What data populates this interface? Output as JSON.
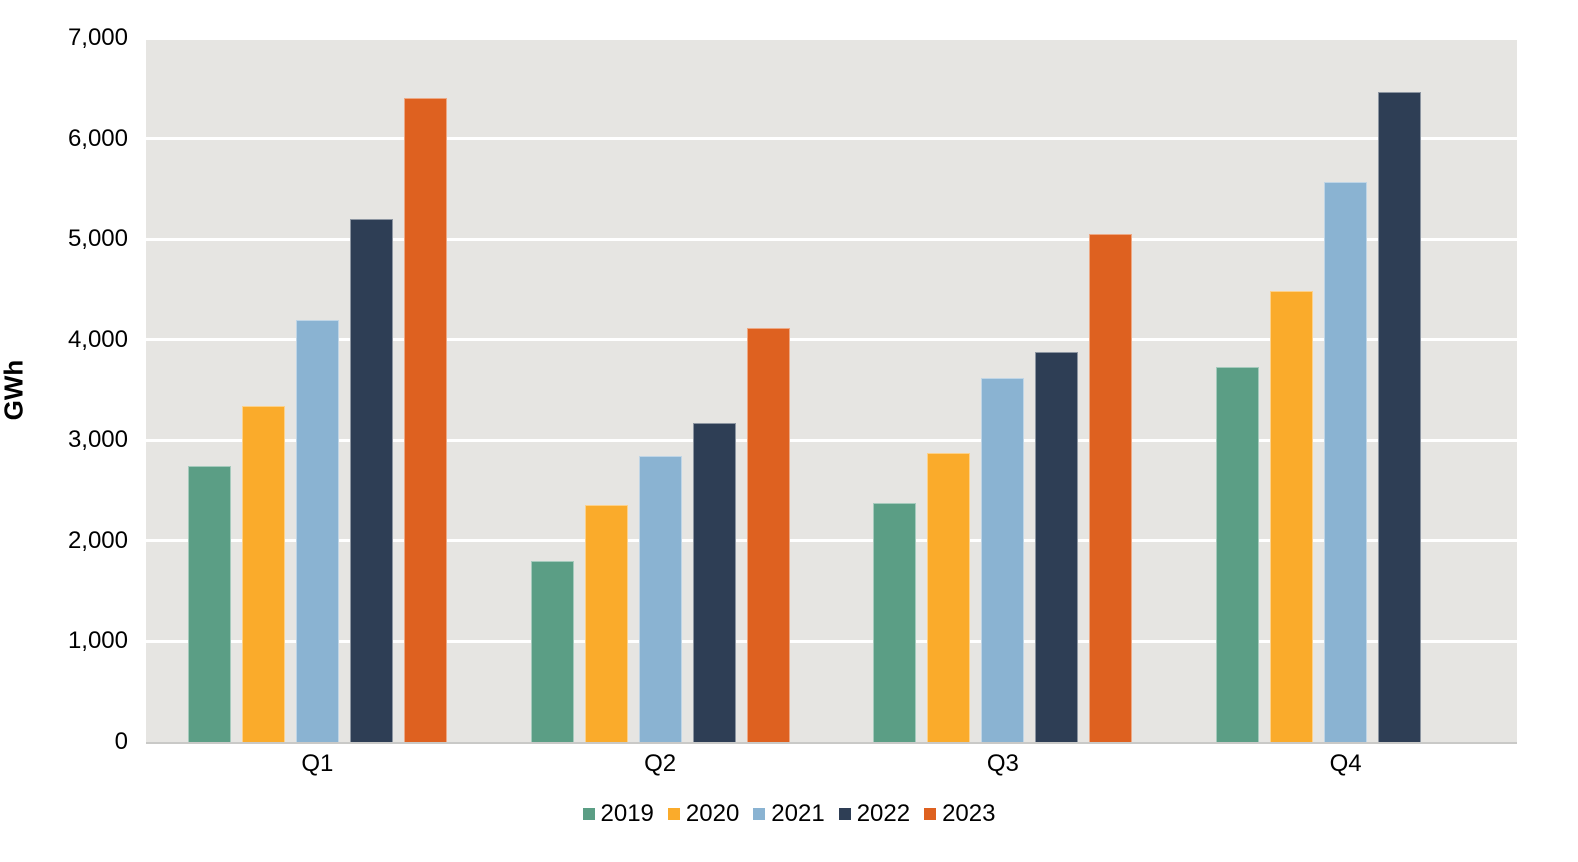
{
  "chart_data": {
    "type": "bar",
    "title": "",
    "xlabel": "",
    "ylabel": "GWh",
    "categories": [
      "Q1",
      "Q2",
      "Q3",
      "Q4"
    ],
    "series": [
      {
        "name": "2019",
        "color": "#5B9E85",
        "values": [
          2740,
          1800,
          2380,
          3730
        ]
      },
      {
        "name": "2020",
        "color": "#FAAB2B",
        "values": [
          3340,
          2360,
          2870,
          4480
        ]
      },
      {
        "name": "2021",
        "color": "#8AB3D2",
        "values": [
          4200,
          2840,
          3620,
          5570
        ]
      },
      {
        "name": "2022",
        "color": "#2E3E55",
        "values": [
          5200,
          3170,
          3880,
          6460
        ]
      },
      {
        "name": "2023",
        "color": "#DE6120",
        "values": [
          6400,
          4120,
          5050,
          null
        ]
      }
    ],
    "ylim": [
      0,
      7000
    ],
    "ytick_step": 1000,
    "ytick_labels": [
      "0",
      "1,000",
      "2,000",
      "3,000",
      "4,000",
      "5,000",
      "6,000",
      "7,000"
    ],
    "grid": "horizontal-white",
    "plot_background": "#E6E5E2",
    "page_background": "#FFFFFF",
    "legend_position": "bottom",
    "legend_marker": "square"
  }
}
